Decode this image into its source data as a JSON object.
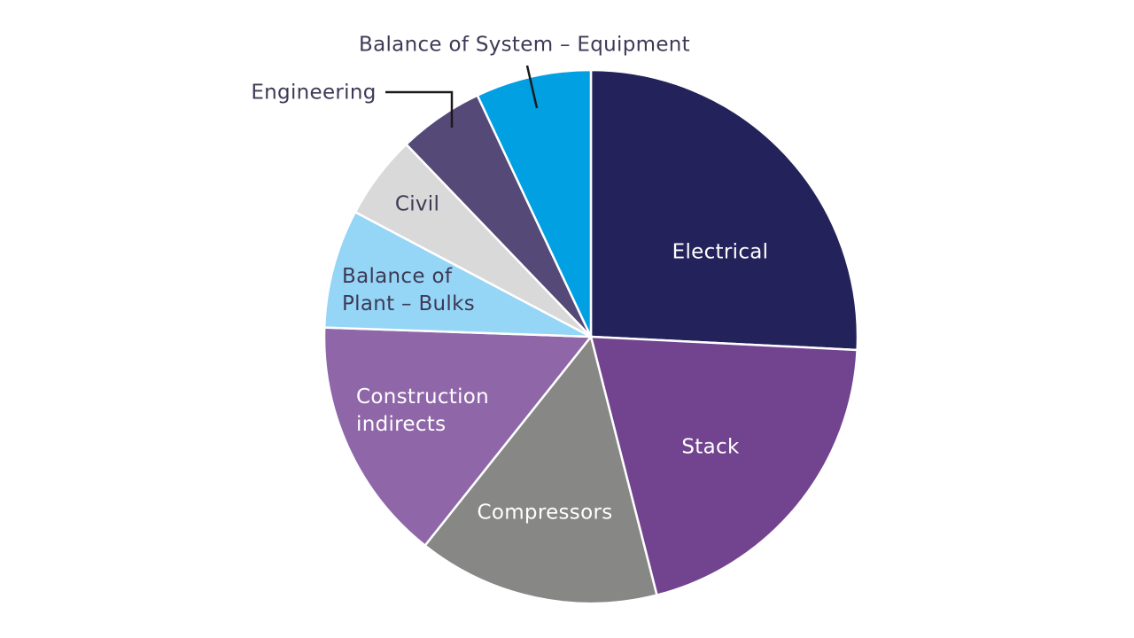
{
  "chart_data": {
    "type": "pie",
    "slices": [
      {
        "label": "Electrical",
        "value": 26.9,
        "color": "#24225a",
        "text_color": "#ffffff"
      },
      {
        "label": "Stack",
        "value": 21.1,
        "color": "#724490",
        "text_color": "#ffffff"
      },
      {
        "label": "Compressors",
        "value": 15.3,
        "color": "#878786",
        "text_color": "#ffffff"
      },
      {
        "label": "Construction indirects",
        "value": 15.5,
        "color": "#8f67a9",
        "text_color": "#ffffff"
      },
      {
        "label": "Balance of Plant – Bulks",
        "value": 7.5,
        "color": "#95d5f6",
        "text_color": "#3d3a56"
      },
      {
        "label": "Civil",
        "value": 5.3,
        "color": "#d9d9d9",
        "text_color": "#3d3a56"
      },
      {
        "label": "Engineering",
        "value": 5.4,
        "color": "#544977",
        "text_color": "#3d3a56"
      },
      {
        "label": "Balance of System – Equipment",
        "value": 7.3,
        "color": "#00a0e3",
        "text_color": "#3d3a56"
      }
    ]
  }
}
